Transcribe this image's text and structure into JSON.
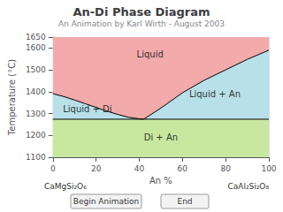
{
  "chart_data": {
    "type": "area",
    "title": "An-Di Phase Diagram",
    "subtitle": "An Animation by Karl Wirth - August 2003",
    "xlabel": "An %",
    "ylabel": "Temperature (°C)",
    "xlim": [
      0,
      100
    ],
    "ylim": [
      1100,
      1650
    ],
    "xticks": [
      0,
      20,
      40,
      60,
      80,
      100
    ],
    "yticks": [
      1100,
      1200,
      1300,
      1400,
      1500,
      1600
    ],
    "grid": true,
    "series": [
      {
        "x": [
          0,
          5,
          10,
          15,
          20,
          25,
          30,
          35,
          40,
          42
        ],
        "values": [
          1391,
          1378,
          1362,
          1345,
          1328,
          1311,
          1296,
          1283,
          1276,
          1274
        ]
      },
      {
        "x": [
          42,
          50,
          60,
          70,
          80,
          90,
          100
        ],
        "values": [
          1274,
          1325,
          1395,
          1452,
          1500,
          1548,
          1590
        ]
      }
    ],
    "solidus": 1274,
    "annotations": [
      {
        "text": "Liquid",
        "x": 45,
        "y": 1570,
        "color": "#f2aaaa"
      },
      {
        "text": "Liquid + Di",
        "x": 16,
        "y": 1320,
        "color": "#b8e0e8"
      },
      {
        "text": "Liquid + An",
        "x": 75,
        "y": 1390,
        "color": "#b8e0e8"
      },
      {
        "text": "Di + An",
        "x": 50,
        "y": 1190,
        "color": "#c8e8a0"
      },
      "CaMgSi₂O₆",
      "CaAl₂Si₂O₈",
      "Begin Animation",
      "End"
    ]
  }
}
